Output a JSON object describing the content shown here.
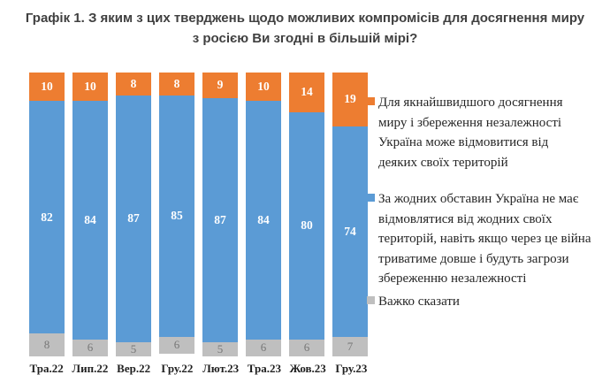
{
  "chart_data": {
    "type": "bar",
    "stacked": true,
    "title": "Графік 1. З яким з цих тверджень щодо можливих компромісів для досягнення миру з росією Ви згодні в більшій мірі?",
    "categories": [
      "Тра.22",
      "Лип.22",
      "Вер.22",
      "Гру.22",
      "Лют.23",
      "Тра.23",
      "Жов.23",
      "Гру.23"
    ],
    "series": [
      {
        "name": "Для якнайшвидшого досягнення миру і збереження незалежності Україна може відмовитися від деяких своїх територій",
        "color": "#ED7D31",
        "label_color": "#FFFFFF",
        "values": [
          10,
          10,
          8,
          8,
          9,
          10,
          14,
          19
        ]
      },
      {
        "name": "За жодних обставин Україна не має відмовлятися від жодних своїх територій, навіть якщо через це війна триватиме довше і будуть загрози збереженню незалежності",
        "color": "#5B9BD5",
        "label_color": "#FFFFFF",
        "values": [
          82,
          84,
          87,
          85,
          87,
          84,
          80,
          74
        ]
      },
      {
        "name": "Важко сказати",
        "color": "#BFBFBF",
        "label_color": "#767676",
        "values": [
          8,
          6,
          5,
          6,
          5,
          6,
          6,
          7
        ]
      }
    ],
    "ylim": [
      0,
      100
    ],
    "grid": false,
    "axis_lines": false,
    "legend_position": "right"
  }
}
